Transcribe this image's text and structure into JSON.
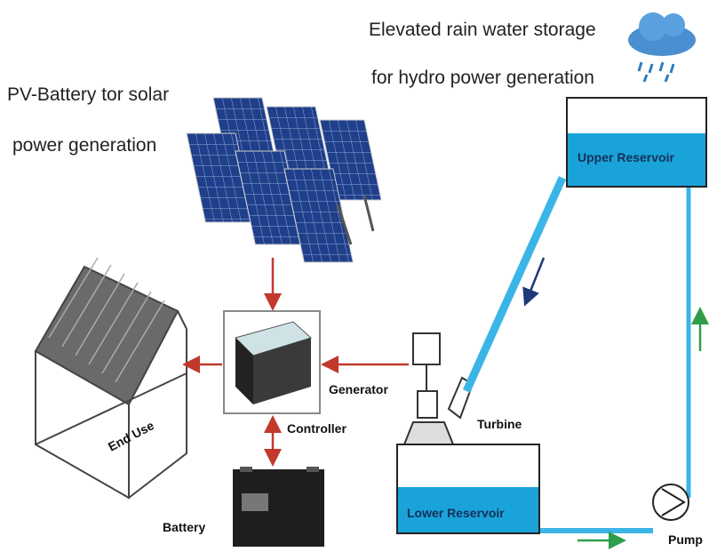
{
  "captions": {
    "hydro": [
      "Elevated rain water storage",
      "for hydro power generation"
    ],
    "solar": [
      "PV-Battery tor solar",
      "power generation"
    ]
  },
  "labels": {
    "upper_reservoir": "Upper Reservoir",
    "lower_reservoir": "Lower Reservoir",
    "end_use": "End Use",
    "controller": "Controller",
    "generator": "Generator",
    "turbine": "Turbine",
    "battery": "Battery",
    "pump": "Pump"
  }
}
